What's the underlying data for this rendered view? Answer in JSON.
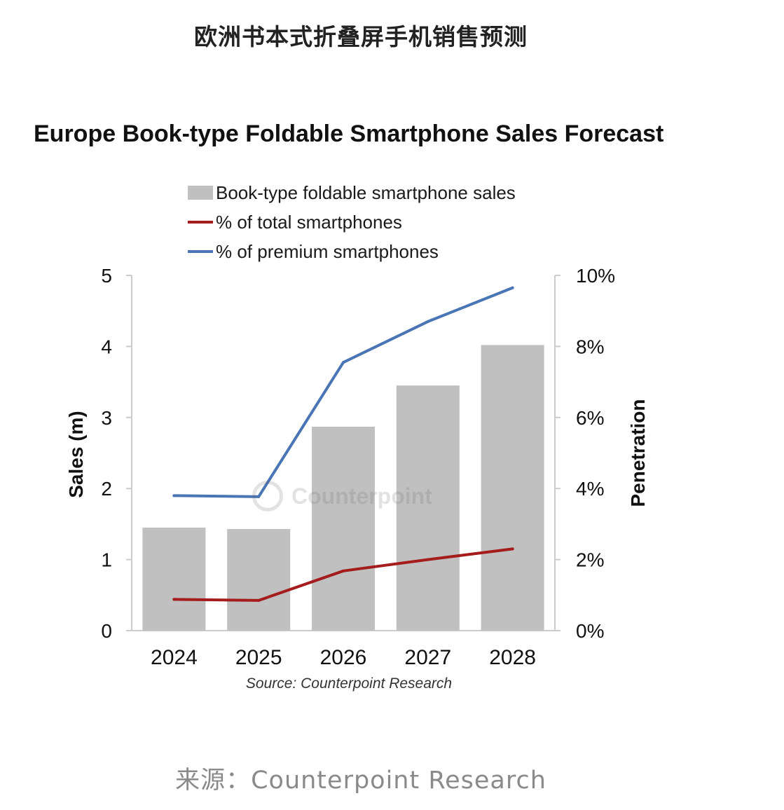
{
  "page": {
    "title": "欧洲书本式折叠屏手机销售预测",
    "caption": "来源：Counterpoint Research",
    "watermark": "Counterpoint"
  },
  "colors": {
    "bar": "#c0c0c0",
    "total_line": "#a51c1c",
    "premium_line": "#4a75b5",
    "axis": "#cccccc",
    "text": "#111111"
  },
  "chart_data": {
    "type": "bar",
    "title": "Europe Book-type Foldable Smartphone Sales Forecast",
    "categories": [
      "2024",
      "2025",
      "2026",
      "2027",
      "2028"
    ],
    "ylabel": "Sales (m)",
    "ylabel_right": "Penetration",
    "ylim": [
      0,
      5
    ],
    "ylim_right": [
      0,
      10
    ],
    "yticks": [
      "0",
      "1",
      "2",
      "3",
      "4",
      "5"
    ],
    "yticks_right": [
      "0%",
      "2%",
      "4%",
      "6%",
      "8%",
      "10%"
    ],
    "source": "Source: Counterpoint Research",
    "legend": {
      "bar": "Book-type foldable smartphone sales",
      "total": "% of total smartphones",
      "premium": "% of premium smartphones"
    },
    "series": [
      {
        "name": "Book-type foldable smartphone sales",
        "type": "bar",
        "axis": "left",
        "values": [
          1.45,
          1.43,
          2.87,
          3.45,
          4.02
        ]
      },
      {
        "name": "% of total smartphones",
        "type": "line",
        "axis": "right",
        "values": [
          0.88,
          0.85,
          1.68,
          2.0,
          2.3
        ]
      },
      {
        "name": "% of premium smartphones",
        "type": "line",
        "axis": "right",
        "values": [
          3.8,
          3.77,
          7.55,
          8.7,
          9.65
        ]
      }
    ]
  }
}
